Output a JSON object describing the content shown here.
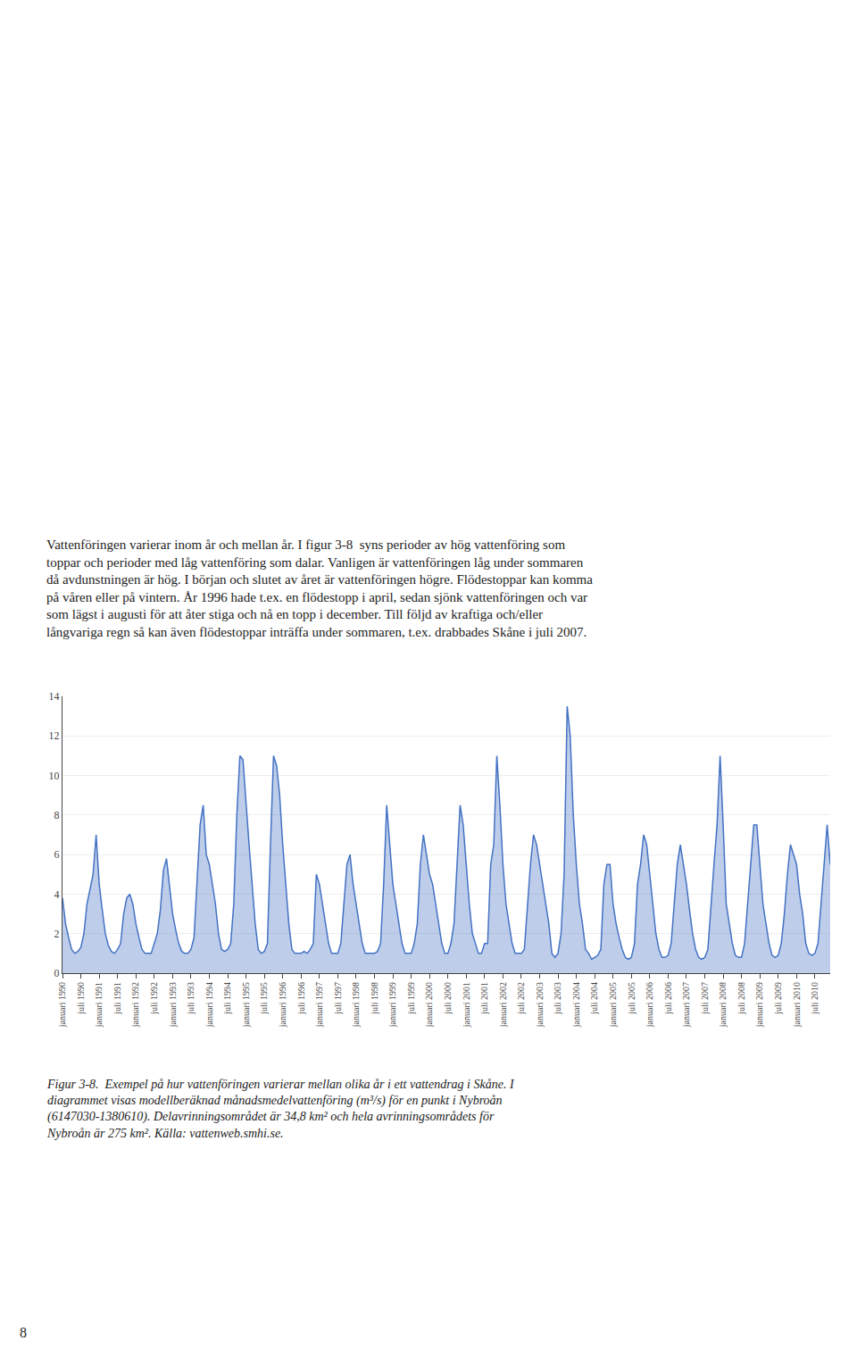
{
  "chart_data": {
    "type": "area",
    "color": "#4472C4",
    "categories": [
      "januari 1990",
      null,
      null,
      null,
      null,
      null,
      "juli 1990",
      null,
      null,
      null,
      null,
      null,
      "januari 1991",
      null,
      null,
      null,
      null,
      null,
      "juli 1991",
      null,
      null,
      null,
      null,
      null,
      "januari 1992",
      null,
      null,
      null,
      null,
      null,
      "juli 1992",
      null,
      null,
      null,
      null,
      null,
      "januari 1993",
      null,
      null,
      null,
      null,
      null,
      "juli 1993",
      null,
      null,
      null,
      null,
      null,
      "januari 1994",
      null,
      null,
      null,
      null,
      null,
      "juli 1994",
      null,
      null,
      null,
      null,
      null,
      "januari 1995",
      null,
      null,
      null,
      null,
      null,
      "juli 1995",
      null,
      null,
      null,
      null,
      null,
      "januari 1996",
      null,
      null,
      null,
      null,
      null,
      "juli 1996",
      null,
      null,
      null,
      null,
      null,
      "januari 1997",
      null,
      null,
      null,
      null,
      null,
      "juli 1997",
      null,
      null,
      null,
      null,
      null,
      "januari 1998",
      null,
      null,
      null,
      null,
      null,
      "juli 1998",
      null,
      null,
      null,
      null,
      null,
      "januari 1999",
      null,
      null,
      null,
      null,
      null,
      "juli 1999",
      null,
      null,
      null,
      null,
      null,
      "januari 2000",
      null,
      null,
      null,
      null,
      null,
      "juli 2000",
      null,
      null,
      null,
      null,
      null,
      "januari 2001",
      null,
      null,
      null,
      null,
      null,
      "juli 2001",
      null,
      null,
      null,
      null,
      null,
      "januari 2002",
      null,
      null,
      null,
      null,
      null,
      "juli 2002",
      null,
      null,
      null,
      null,
      null,
      "januari 2003",
      null,
      null,
      null,
      null,
      null,
      "juli 2003",
      null,
      null,
      null,
      null,
      null,
      "januari 2004",
      null,
      null,
      null,
      null,
      null,
      "juli 2004",
      null,
      null,
      null,
      null,
      null,
      "januari 2005",
      null,
      null,
      null,
      null,
      null,
      "juli 2005",
      null,
      null,
      null,
      null,
      null,
      "januari 2006",
      null,
      null,
      null,
      null,
      null,
      "juli 2006",
      null,
      null,
      null,
      null,
      null,
      "januari 2007",
      null,
      null,
      null,
      null,
      null,
      "juli 2007",
      null,
      null,
      null,
      null,
      null,
      "januari 2008",
      null,
      null,
      null,
      null,
      null,
      "juli 2008",
      null,
      null,
      null,
      null,
      null,
      "januari 2009",
      null,
      null,
      null,
      null,
      null,
      "juli 2009",
      null,
      null,
      null,
      null,
      null,
      "januari 2010",
      null,
      null,
      null,
      null,
      null,
      "juli 2010",
      null,
      null,
      null,
      null,
      null
    ],
    "values": [
      3.8,
      2.5,
      1.8,
      1.2,
      1.0,
      1.1,
      1.3,
      2.0,
      3.5,
      4.2,
      5.0,
      7.0,
      4.5,
      3.2,
      2.0,
      1.4,
      1.1,
      1.0,
      1.2,
      1.5,
      3.0,
      3.8,
      4.0,
      3.5,
      2.5,
      1.8,
      1.2,
      1.0,
      1.0,
      1.0,
      1.5,
      2.0,
      3.2,
      5.2,
      5.8,
      4.5,
      3.0,
      2.2,
      1.5,
      1.1,
      1.0,
      1.0,
      1.2,
      1.8,
      4.5,
      7.5,
      8.5,
      6.0,
      5.5,
      4.5,
      3.5,
      2.0,
      1.2,
      1.1,
      1.2,
      1.5,
      3.5,
      8.0,
      11.0,
      10.8,
      8.5,
      6.5,
      4.5,
      2.5,
      1.2,
      1.0,
      1.1,
      1.5,
      6.5,
      11.0,
      10.5,
      9.0,
      6.5,
      4.5,
      2.5,
      1.2,
      1.0,
      1.0,
      1.0,
      1.1,
      1.0,
      1.2,
      1.5,
      5.0,
      4.5,
      3.5,
      2.5,
      1.5,
      1.0,
      1.0,
      1.0,
      1.5,
      3.5,
      5.5,
      6.0,
      4.5,
      3.5,
      2.5,
      1.5,
      1.0,
      1.0,
      1.0,
      1.0,
      1.1,
      1.5,
      4.5,
      8.5,
      6.5,
      4.5,
      3.5,
      2.5,
      1.5,
      1.0,
      1.0,
      1.0,
      1.5,
      2.5,
      5.5,
      7.0,
      6.0,
      5.0,
      4.5,
      3.5,
      2.5,
      1.5,
      1.0,
      1.0,
      1.5,
      2.5,
      5.5,
      8.5,
      7.5,
      5.5,
      3.5,
      2.0,
      1.5,
      1.0,
      1.0,
      1.5,
      1.5,
      5.5,
      6.5,
      11.0,
      8.5,
      5.5,
      3.5,
      2.5,
      1.5,
      1.0,
      1.0,
      1.0,
      1.2,
      3.5,
      5.5,
      7.0,
      6.5,
      5.5,
      4.5,
      3.5,
      2.5,
      1.0,
      0.8,
      1.0,
      2.0,
      5.0,
      13.5,
      12.0,
      8.0,
      5.5,
      3.5,
      2.5,
      1.2,
      1.0,
      0.7,
      0.8,
      0.9,
      1.2,
      4.5,
      5.5,
      5.5,
      3.5,
      2.5,
      1.8,
      1.2,
      0.8,
      0.7,
      0.8,
      1.5,
      4.5,
      5.5,
      7.0,
      6.5,
      5.0,
      3.5,
      2.0,
      1.2,
      0.8,
      0.8,
      0.9,
      1.5,
      3.5,
      5.5,
      6.5,
      5.5,
      4.5,
      3.2,
      2.0,
      1.2,
      0.8,
      0.7,
      0.8,
      1.2,
      3.5,
      5.5,
      7.5,
      11.0,
      7.5,
      3.5,
      2.5,
      1.5,
      0.9,
      0.8,
      0.8,
      1.5,
      3.5,
      5.5,
      7.5,
      7.5,
      5.5,
      3.5,
      2.5,
      1.5,
      0.9,
      0.8,
      0.9,
      1.5,
      3.0,
      5.0,
      6.5,
      6.0,
      5.5,
      4.0,
      3.0,
      1.5,
      1.0,
      0.9,
      1.0,
      1.5,
      3.5,
      5.5,
      7.5,
      5.5
    ],
    "ylim": [
      0,
      14
    ],
    "yticks": [
      0,
      2,
      4,
      6,
      8,
      10,
      12,
      14
    ],
    "grid": true,
    "annotations": [
      [
        "Vattenföringen varierar inom år och mellan år. I figur 3-8  syns perioder av hög vattenföring som",
        "toppar och perioder med låg vattenföring som dalar. Vanligen är vattenföringen låg under sommaren",
        "då avdunstningen är hög. I början och slutet av året är vattenföringen högre. Flödestoppar kan komma",
        "på våren eller på vintern. År 1996 hade t.ex. en flödestopp i april, sedan sjönk vattenföringen och var",
        "som lägst i augusti för att åter stiga och nå en topp i december. Till följd av kraftiga och/eller",
        "långvariga regn så kan även flödestoppar inträffa under sommaren, t.ex. drabbades Skåne i juli 2007."
      ],
      [
        "Figur 3-8.  Exempel på hur vattenföringen varierar mellan olika år i ett vattendrag i Skåne. I",
        "diagrammet visas modellberäknad månadsmedelvattenföring (m³/s) för en punkt i Nybroån",
        "(6147030-1380610). Delavrinningsområdet är 34,8 km² och hela avrinningsområdets för",
        "Nybroån är 275 km². Källa: vattenweb.smhi.se."
      ],
      [
        "8"
      ]
    ]
  }
}
